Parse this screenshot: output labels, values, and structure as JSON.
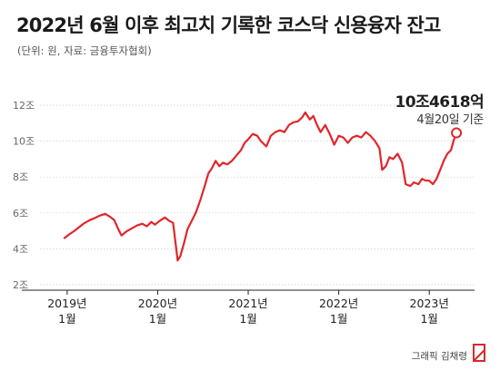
{
  "header": {
    "title": "2022년 6월 이후 최고치 기록한 코스닥 신용융자 잔고",
    "subtitle": "(단위: 원, 자료: 금융투자협회)"
  },
  "callout": {
    "value": "10조4618억",
    "date": "4월20일 기준"
  },
  "credit": "그래픽 김채령",
  "colors": {
    "line": "#e0262b",
    "grid": "#cccccc",
    "axis": "#222222",
    "logo": "#d42a2a"
  },
  "chart_data": {
    "type": "line",
    "y_tick_labels": [
      "2조",
      "4조",
      "6조",
      "8조",
      "10조",
      "12조"
    ],
    "y_ticks": [
      2,
      4,
      6,
      8,
      10,
      12
    ],
    "ylim": [
      2,
      12
    ],
    "x_ticks": [
      {
        "line1": "2019년",
        "line2": "1월",
        "x": 2019.0
      },
      {
        "line1": "2020년",
        "line2": "1월",
        "x": 2020.0
      },
      {
        "line1": "2021년",
        "line2": "1월",
        "x": 2021.0
      },
      {
        "line1": "2022년",
        "line2": "1월",
        "x": 2022.0
      },
      {
        "line1": "2023년",
        "line2": "1월",
        "x": 2023.0
      }
    ],
    "xlim": [
      2018.7,
      2023.5
    ],
    "series": [
      {
        "values": [
          [
            2018.97,
            4.6
          ],
          [
            2019.02,
            4.8
          ],
          [
            2019.08,
            5.0
          ],
          [
            2019.13,
            5.2
          ],
          [
            2019.18,
            5.4
          ],
          [
            2019.25,
            5.6
          ],
          [
            2019.3,
            5.7
          ],
          [
            2019.36,
            5.85
          ],
          [
            2019.42,
            5.95
          ],
          [
            2019.47,
            5.8
          ],
          [
            2019.52,
            5.6
          ],
          [
            2019.56,
            5.15
          ],
          [
            2019.6,
            4.75
          ],
          [
            2019.65,
            4.95
          ],
          [
            2019.7,
            5.1
          ],
          [
            2019.77,
            5.3
          ],
          [
            2019.83,
            5.4
          ],
          [
            2019.88,
            5.25
          ],
          [
            2019.93,
            5.5
          ],
          [
            2019.97,
            5.35
          ],
          [
            2020.02,
            5.55
          ],
          [
            2020.08,
            5.75
          ],
          [
            2020.13,
            5.55
          ],
          [
            2020.17,
            5.45
          ],
          [
            2020.2,
            4.2
          ],
          [
            2020.22,
            3.35
          ],
          [
            2020.25,
            3.6
          ],
          [
            2020.29,
            4.3
          ],
          [
            2020.33,
            5.1
          ],
          [
            2020.38,
            5.6
          ],
          [
            2020.42,
            6.0
          ],
          [
            2020.47,
            6.7
          ],
          [
            2020.52,
            7.5
          ],
          [
            2020.56,
            8.2
          ],
          [
            2020.6,
            8.5
          ],
          [
            2020.64,
            8.9
          ],
          [
            2020.68,
            8.6
          ],
          [
            2020.72,
            8.8
          ],
          [
            2020.77,
            8.7
          ],
          [
            2020.82,
            8.9
          ],
          [
            2020.87,
            9.2
          ],
          [
            2020.92,
            9.5
          ],
          [
            2020.96,
            9.9
          ],
          [
            2021.0,
            10.1
          ],
          [
            2021.05,
            10.4
          ],
          [
            2021.1,
            10.3
          ],
          [
            2021.14,
            10.0
          ],
          [
            2021.2,
            9.7
          ],
          [
            2021.25,
            10.3
          ],
          [
            2021.3,
            10.5
          ],
          [
            2021.35,
            10.6
          ],
          [
            2021.4,
            10.5
          ],
          [
            2021.45,
            10.9
          ],
          [
            2021.5,
            11.05
          ],
          [
            2021.55,
            11.1
          ],
          [
            2021.6,
            11.35
          ],
          [
            2021.63,
            11.6
          ],
          [
            2021.68,
            11.2
          ],
          [
            2021.72,
            11.4
          ],
          [
            2021.76,
            10.9
          ],
          [
            2021.8,
            10.5
          ],
          [
            2021.85,
            10.9
          ],
          [
            2021.9,
            10.4
          ],
          [
            2021.95,
            9.8
          ],
          [
            2022.0,
            10.3
          ],
          [
            2022.05,
            10.2
          ],
          [
            2022.1,
            9.9
          ],
          [
            2022.15,
            10.2
          ],
          [
            2022.2,
            10.3
          ],
          [
            2022.25,
            10.2
          ],
          [
            2022.3,
            10.5
          ],
          [
            2022.35,
            10.3
          ],
          [
            2022.4,
            10.0
          ],
          [
            2022.45,
            9.6
          ],
          [
            2022.48,
            8.4
          ],
          [
            2022.52,
            8.6
          ],
          [
            2022.56,
            9.1
          ],
          [
            2022.6,
            9.0
          ],
          [
            2022.65,
            9.3
          ],
          [
            2022.7,
            8.8
          ],
          [
            2022.74,
            7.6
          ],
          [
            2022.79,
            7.5
          ],
          [
            2022.83,
            7.7
          ],
          [
            2022.88,
            7.6
          ],
          [
            2022.92,
            7.9
          ],
          [
            2022.96,
            7.8
          ],
          [
            2023.0,
            7.8
          ],
          [
            2023.04,
            7.6
          ],
          [
            2023.08,
            7.9
          ],
          [
            2023.12,
            8.4
          ],
          [
            2023.16,
            8.9
          ],
          [
            2023.2,
            9.3
          ],
          [
            2023.24,
            9.5
          ],
          [
            2023.27,
            10.05
          ],
          [
            2023.3,
            10.46
          ]
        ]
      }
    ],
    "endpoint": {
      "x": 2023.3,
      "y": 10.46
    }
  }
}
